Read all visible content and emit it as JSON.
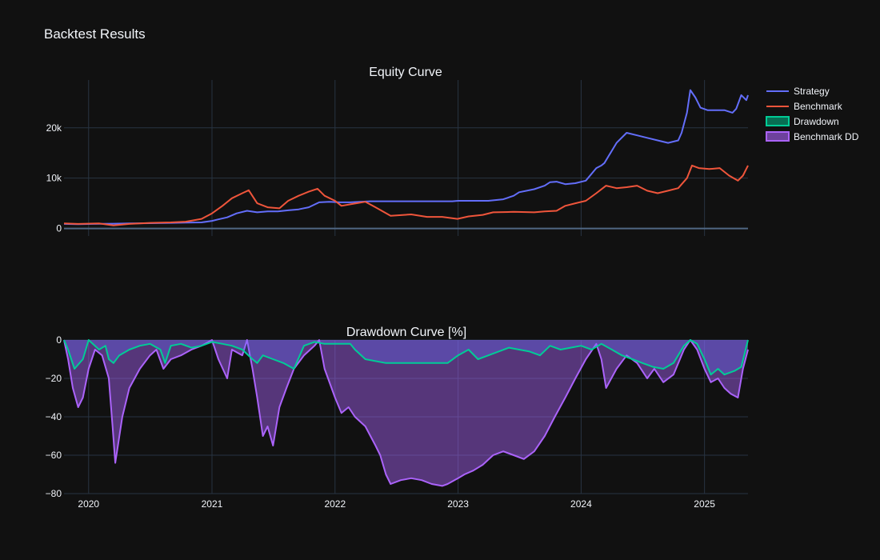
{
  "page": {
    "title": "Backtest Results"
  },
  "colors": {
    "background": "#111111",
    "grid": "#283442",
    "strategy": "#636efa",
    "benchmark": "#ef553b",
    "drawdown_line": "#00cc96",
    "benchmark_dd_line": "#ab63fa",
    "drawdown_fill": "rgba(99,110,250,0.35)",
    "benchmark_dd_fill": "rgba(171,99,250,0.45)"
  },
  "chart_data": [
    {
      "type": "line",
      "title": "Equity Curve",
      "xlim": [
        "2019-10-20",
        "2025-05-10"
      ],
      "ylim": [
        -1500,
        29500
      ],
      "y_ticks": [
        0,
        10000,
        20000
      ],
      "y_tick_labels": [
        "0",
        "10k",
        "20k"
      ],
      "grid": true,
      "legend": "top-right",
      "series": [
        {
          "name": "Strategy",
          "x": [
            "2019-10-20",
            "2019-12-01",
            "2020-01-15",
            "2020-03-15",
            "2020-05-01",
            "2020-07-01",
            "2020-09-01",
            "2020-10-15",
            "2020-12-01",
            "2021-01-01",
            "2021-01-20",
            "2021-02-15",
            "2021-03-15",
            "2021-04-15",
            "2021-05-15",
            "2021-06-15",
            "2021-07-15",
            "2021-08-15",
            "2021-09-15",
            "2021-10-15",
            "2021-11-15",
            "2021-12-15",
            "2022-01-15",
            "2022-02-15",
            "2022-03-15",
            "2022-04-15",
            "2022-06-15",
            "2022-09-15",
            "2022-12-15",
            "2023-01-01",
            "2023-02-15",
            "2023-04-01",
            "2023-05-15",
            "2023-06-15",
            "2023-07-01",
            "2023-08-15",
            "2023-09-15",
            "2023-10-01",
            "2023-10-20",
            "2023-11-15",
            "2023-12-15",
            "2024-01-15",
            "2024-02-15",
            "2024-03-01",
            "2024-03-10",
            "2024-04-15",
            "2024-05-15",
            "2024-06-15",
            "2024-07-15",
            "2024-08-15",
            "2024-09-15",
            "2024-10-15",
            "2024-10-25",
            "2024-11-10",
            "2024-11-20",
            "2024-12-05",
            "2024-12-20",
            "2025-01-10",
            "2025-02-01",
            "2025-03-01",
            "2025-03-25",
            "2025-04-05",
            "2025-04-20",
            "2025-05-05",
            "2025-05-10"
          ],
          "y": [
            900,
            850,
            900,
            950,
            1000,
            1050,
            1100,
            1150,
            1200,
            1500,
            1800,
            2200,
            3000,
            3500,
            3200,
            3400,
            3400,
            3600,
            3800,
            4200,
            5200,
            5300,
            5200,
            5200,
            5300,
            5400,
            5400,
            5400,
            5400,
            5500,
            5500,
            5500,
            5800,
            6500,
            7200,
            7800,
            8500,
            9200,
            9300,
            8800,
            9000,
            9500,
            12000,
            12500,
            13000,
            17000,
            19000,
            18500,
            18000,
            17500,
            17000,
            17500,
            19000,
            23000,
            27500,
            26000,
            24000,
            23500,
            23500,
            23500,
            23000,
            23800,
            26500,
            25500,
            26500
          ]
        },
        {
          "name": "Benchmark",
          "x": [
            "2019-10-20",
            "2019-12-01",
            "2020-02-01",
            "2020-03-15",
            "2020-05-01",
            "2020-07-01",
            "2020-09-01",
            "2020-10-15",
            "2020-12-01",
            "2021-01-01",
            "2021-02-01",
            "2021-03-01",
            "2021-04-01",
            "2021-04-20",
            "2021-05-15",
            "2021-06-15",
            "2021-07-20",
            "2021-08-15",
            "2021-09-15",
            "2021-10-15",
            "2021-11-10",
            "2021-12-01",
            "2022-01-01",
            "2022-01-20",
            "2022-02-15",
            "2022-04-01",
            "2022-05-01",
            "2022-06-15",
            "2022-08-15",
            "2022-10-01",
            "2022-11-15",
            "2022-12-30",
            "2023-02-01",
            "2023-03-15",
            "2023-04-15",
            "2023-06-15",
            "2023-08-15",
            "2023-09-15",
            "2023-10-20",
            "2023-11-15",
            "2023-12-15",
            "2024-01-15",
            "2024-02-15",
            "2024-03-15",
            "2024-04-15",
            "2024-05-15",
            "2024-06-15",
            "2024-07-15",
            "2024-08-15",
            "2024-09-15",
            "2024-10-15",
            "2024-11-10",
            "2024-11-25",
            "2024-12-15",
            "2025-01-15",
            "2025-02-15",
            "2025-03-15",
            "2025-04-10",
            "2025-04-25",
            "2025-05-10"
          ],
          "y": [
            1000,
            900,
            1000,
            600,
            900,
            1100,
            1200,
            1350,
            1900,
            3000,
            4500,
            6000,
            7000,
            7600,
            5000,
            4200,
            4000,
            5500,
            6500,
            7300,
            7900,
            6500,
            5500,
            4500,
            4800,
            5300,
            4200,
            2500,
            2800,
            2300,
            2300,
            1900,
            2400,
            2700,
            3200,
            3300,
            3200,
            3400,
            3500,
            4500,
            5000,
            5500,
            7000,
            8500,
            8000,
            8200,
            8500,
            7500,
            7000,
            7500,
            8000,
            10000,
            12500,
            12000,
            11800,
            12000,
            10500,
            9500,
            10500,
            12500
          ]
        }
      ]
    },
    {
      "type": "area",
      "title": "Drawdown Curve [%]",
      "xlim": [
        "2019-10-20",
        "2025-05-10"
      ],
      "ylim": [
        -80,
        0
      ],
      "y_ticks": [
        0,
        -20,
        -40,
        -60,
        -80
      ],
      "y_tick_labels": [
        "0",
        "−20",
        "−40",
        "−60",
        "−80"
      ],
      "x_ticks": [
        "2020-01-01",
        "2021-01-01",
        "2022-01-01",
        "2023-01-01",
        "2024-01-01",
        "2025-01-01"
      ],
      "x_tick_labels": [
        "2020",
        "2021",
        "2022",
        "2023",
        "2024",
        "2025"
      ],
      "grid": true,
      "legend": "top-right",
      "series": [
        {
          "name": "Drawdown",
          "x": [
            "2019-10-20",
            "2019-11-01",
            "2019-11-20",
            "2019-12-15",
            "2020-01-01",
            "2020-02-01",
            "2020-02-20",
            "2020-03-01",
            "2020-03-15",
            "2020-04-01",
            "2020-05-01",
            "2020-06-01",
            "2020-07-01",
            "2020-08-01",
            "2020-08-15",
            "2020-09-01",
            "2020-10-01",
            "2020-11-01",
            "2020-12-01",
            "2021-01-01",
            "2021-02-01",
            "2021-03-01",
            "2021-04-01",
            "2021-05-01",
            "2021-05-15",
            "2021-06-01",
            "2021-07-01",
            "2021-08-01",
            "2021-09-01",
            "2021-10-01",
            "2021-11-01",
            "2021-12-01",
            "2022-01-01",
            "2022-02-01",
            "2022-02-15",
            "2022-03-01",
            "2022-04-01",
            "2022-06-01",
            "2022-09-01",
            "2022-12-01",
            "2023-01-01",
            "2023-02-01",
            "2023-03-01",
            "2023-04-01",
            "2023-05-01",
            "2023-06-01",
            "2023-07-01",
            "2023-08-01",
            "2023-09-01",
            "2023-10-01",
            "2023-11-01",
            "2023-12-01",
            "2024-01-01",
            "2024-02-01",
            "2024-03-01",
            "2024-04-01",
            "2024-05-01",
            "2024-06-01",
            "2024-07-01",
            "2024-08-01",
            "2024-09-01",
            "2024-10-01",
            "2024-11-01",
            "2024-11-20",
            "2024-12-10",
            "2025-01-01",
            "2025-01-20",
            "2025-02-10",
            "2025-03-01",
            "2025-04-01",
            "2025-04-20",
            "2025-05-10"
          ],
          "y": [
            0,
            -5,
            -15,
            -10,
            0,
            -5,
            -3,
            -10,
            -12,
            -8,
            -5,
            -3,
            -2,
            -5,
            -12,
            -3,
            -2,
            -4,
            -3,
            -1,
            -2,
            -3,
            -5,
            -10,
            -12,
            -8,
            -10,
            -12,
            -15,
            -3,
            -1,
            -2,
            -2,
            -2,
            -2,
            -5,
            -10,
            -12,
            -12,
            -12,
            -8,
            -5,
            -10,
            -8,
            -6,
            -4,
            -5,
            -6,
            -8,
            -3,
            -5,
            -4,
            -3,
            -5,
            -2,
            -5,
            -8,
            -10,
            -12,
            -14,
            -15,
            -12,
            -3,
            0,
            -2,
            -10,
            -18,
            -15,
            -18,
            -16,
            -14,
            0
          ]
        },
        {
          "name": "Benchmark DD",
          "x": [
            "2019-10-20",
            "2019-11-01",
            "2019-11-15",
            "2019-12-01",
            "2019-12-15",
            "2020-01-01",
            "2020-01-20",
            "2020-02-10",
            "2020-03-01",
            "2020-03-12",
            "2020-03-20",
            "2020-04-10",
            "2020-05-01",
            "2020-06-01",
            "2020-07-01",
            "2020-07-20",
            "2020-08-10",
            "2020-09-01",
            "2020-10-01",
            "2020-11-01",
            "2020-12-01",
            "2021-01-01",
            "2021-01-20",
            "2021-02-15",
            "2021-03-01",
            "2021-04-01",
            "2021-04-15",
            "2021-05-01",
            "2021-05-15",
            "2021-06-01",
            "2021-06-15",
            "2021-07-01",
            "2021-07-20",
            "2021-08-10",
            "2021-09-01",
            "2021-10-01",
            "2021-11-01",
            "2021-11-15",
            "2021-12-01",
            "2022-01-01",
            "2022-01-20",
            "2022-02-10",
            "2022-03-01",
            "2022-04-01",
            "2022-05-01",
            "2022-05-15",
            "2022-06-01",
            "2022-06-15",
            "2022-07-15",
            "2022-08-15",
            "2022-09-15",
            "2022-10-15",
            "2022-11-15",
            "2022-12-01",
            "2023-01-01",
            "2023-01-20",
            "2023-02-15",
            "2023-03-15",
            "2023-04-15",
            "2023-05-15",
            "2023-06-15",
            "2023-07-15",
            "2023-08-15",
            "2023-09-15",
            "2023-10-15",
            "2023-11-15",
            "2023-12-15",
            "2024-01-15",
            "2024-02-15",
            "2024-03-01",
            "2024-03-15",
            "2024-04-15",
            "2024-05-15",
            "2024-06-15",
            "2024-07-15",
            "2024-08-05",
            "2024-09-01",
            "2024-10-01",
            "2024-11-01",
            "2024-11-20",
            "2024-12-10",
            "2025-01-01",
            "2025-01-20",
            "2025-02-10",
            "2025-03-01",
            "2025-03-20",
            "2025-04-10",
            "2025-04-25",
            "2025-05-10"
          ],
          "y": [
            0,
            -10,
            -25,
            -35,
            -30,
            -15,
            -5,
            -8,
            -20,
            -45,
            -64,
            -40,
            -25,
            -15,
            -8,
            -5,
            -15,
            -10,
            -8,
            -5,
            -3,
            0,
            -10,
            -20,
            -5,
            -8,
            0,
            -15,
            -30,
            -50,
            -45,
            -55,
            -35,
            -25,
            -15,
            -8,
            -3,
            0,
            -15,
            -30,
            -38,
            -35,
            -40,
            -45,
            -55,
            -60,
            -70,
            -75,
            -73,
            -72,
            -73,
            -75,
            -76,
            -75,
            -72,
            -70,
            -68,
            -65,
            -60,
            -58,
            -60,
            -62,
            -58,
            -50,
            -40,
            -30,
            -20,
            -10,
            -2,
            -10,
            -25,
            -15,
            -8,
            -12,
            -20,
            -15,
            -22,
            -18,
            -5,
            0,
            -5,
            -15,
            -22,
            -20,
            -25,
            -28,
            -30,
            -15,
            -5
          ]
        }
      ]
    }
  ]
}
